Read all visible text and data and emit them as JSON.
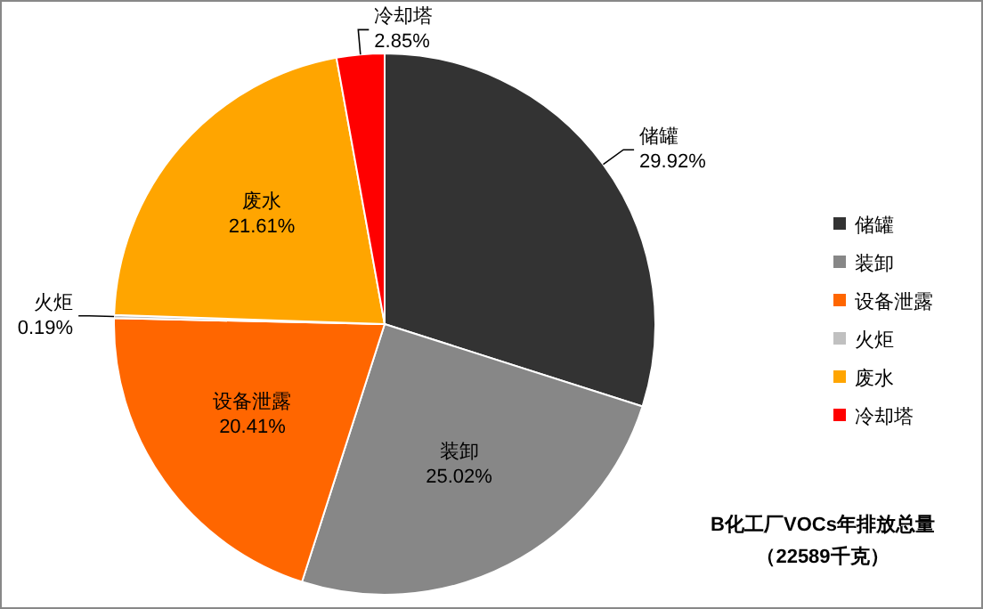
{
  "chart_data": {
    "type": "pie",
    "title": "B化工厂VOCs年排放总量",
    "subtitle": "（22589千克）",
    "categories": [
      "储罐",
      "装卸",
      "设备泄露",
      "火炬",
      "废水",
      "冷却塔"
    ],
    "values": [
      29.92,
      25.02,
      20.41,
      0.19,
      21.61,
      2.85
    ],
    "colors": [
      "#333333",
      "#878787",
      "#ff6600",
      "#c0c0c0",
      "#ffa500",
      "#ff0000"
    ],
    "value_labels": [
      "29.92%",
      "25.02%",
      "20.41%",
      "0.19%",
      "21.61%",
      "2.85%"
    ],
    "legend": "right"
  }
}
